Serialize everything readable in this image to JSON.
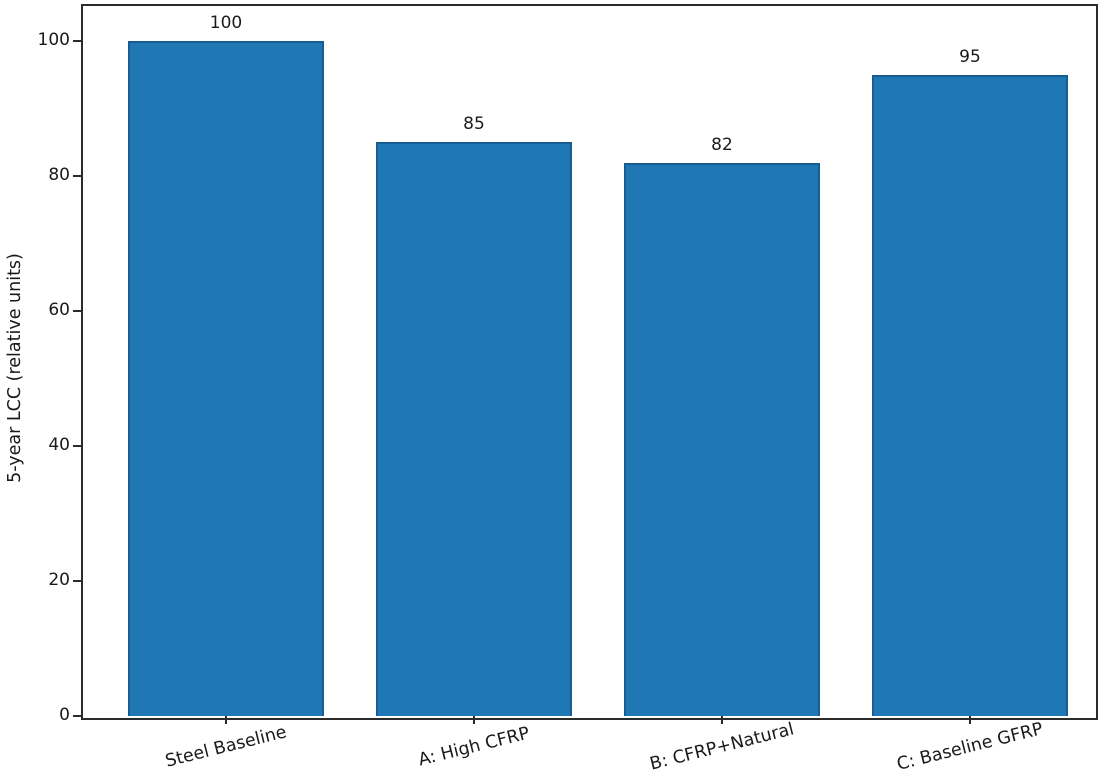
{
  "chart_data": {
    "type": "bar",
    "categories": [
      "Steel Baseline",
      "A: High CFRP",
      "B: CFRP+Natural",
      "C: Baseline GFRP"
    ],
    "values": [
      100,
      85,
      82,
      95
    ],
    "bar_value_labels": [
      "100",
      "85",
      "82",
      "95"
    ],
    "ylabel": "5-year LCC (relative units)",
    "xlabel": "",
    "title": "",
    "yticks": [
      0,
      20,
      40,
      60,
      80,
      100
    ],
    "ytick_labels": [
      "0",
      "20",
      "40",
      "60",
      "80",
      "100"
    ],
    "ylim": [
      0,
      105.3
    ],
    "grid": false,
    "legend_position": "none",
    "bar_color": "#1f77b4",
    "bar_edge_color": "#175d91",
    "axis_color": "#2b2b2b",
    "text_color": "#1a1a1a",
    "xtick_label_rotation_deg": 14
  }
}
